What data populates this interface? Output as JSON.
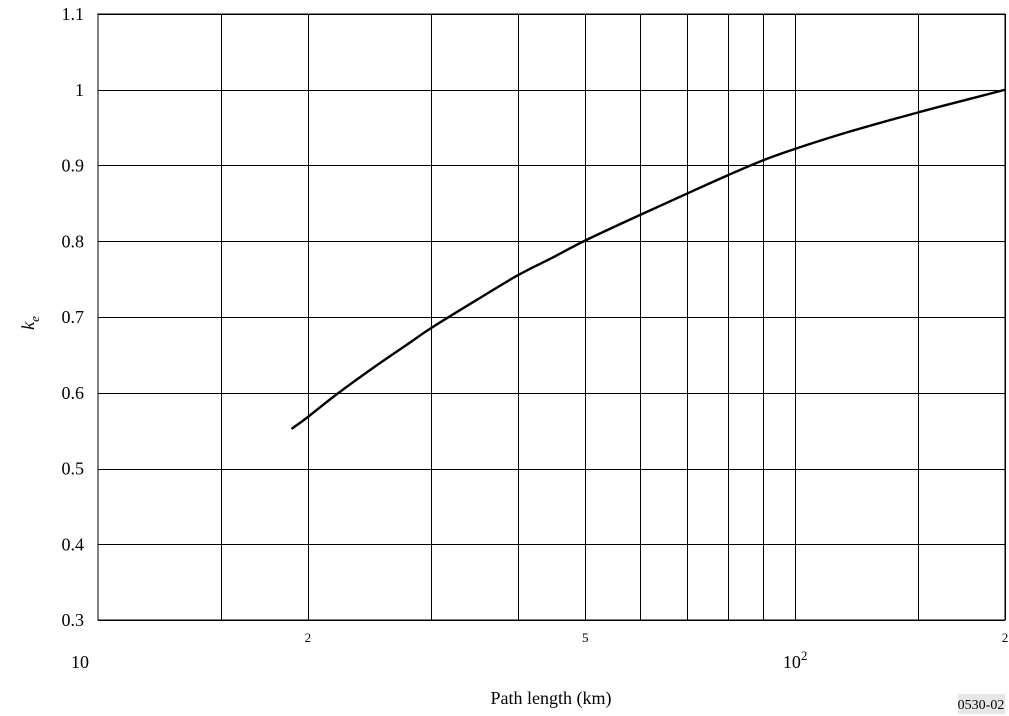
{
  "chart_data": {
    "type": "line",
    "title": "",
    "xlabel": "Path length (km)",
    "ylabel": "k_e",
    "ylabel_main": "k",
    "ylabel_sub": "e",
    "x_scale": "log",
    "xlim": [
      10,
      200
    ],
    "ylim": [
      0.3,
      1.1
    ],
    "grid": true,
    "x_gridlines": [
      15,
      20,
      30,
      40,
      50,
      60,
      70,
      80,
      90,
      100,
      150,
      200
    ],
    "x_tick_labels": [
      {
        "x": 10,
        "text": "10",
        "style": "major"
      },
      {
        "x": 20,
        "text": "2",
        "style": "minor"
      },
      {
        "x": 50,
        "text": "5",
        "style": "minor"
      },
      {
        "x": 100,
        "text": "10",
        "sup": "2",
        "style": "major"
      },
      {
        "x": 200,
        "text": "2",
        "style": "minor"
      }
    ],
    "y_ticks": [
      0.3,
      0.4,
      0.5,
      0.6,
      0.7,
      0.8,
      0.9,
      1.0,
      1.1
    ],
    "y_tick_labels": [
      "0.3",
      "0.4",
      "0.5",
      "0.6",
      "0.7",
      "0.8",
      "0.9",
      "1",
      "1.1"
    ],
    "series": [
      {
        "x": [
          19,
          20,
          22,
          25,
          28,
          30,
          35,
          40,
          45,
          50,
          60,
          70,
          80,
          90,
          100,
          120,
          150,
          180,
          200
        ],
        "y": [
          0.553,
          0.568,
          0.598,
          0.635,
          0.666,
          0.685,
          0.723,
          0.755,
          0.779,
          0.801,
          0.835,
          0.863,
          0.887,
          0.907,
          0.922,
          0.945,
          0.97,
          0.989,
          1.0
        ]
      }
    ]
  },
  "figure_id": "0530-02"
}
